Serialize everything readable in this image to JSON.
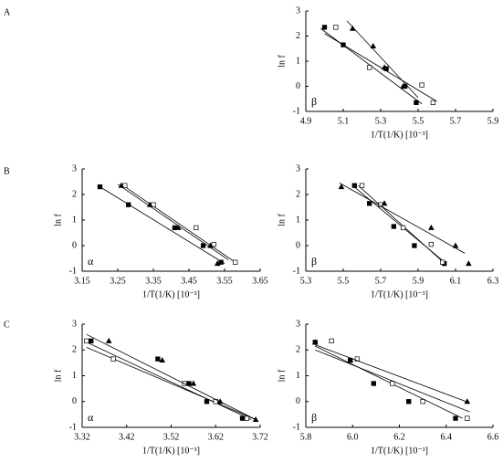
{
  "panel_labels": [
    "A",
    "B",
    "C"
  ],
  "chart_data": [
    {
      "type": "scatter",
      "annotation": "β",
      "xlabel": "1/T(1/K) [10⁻³]",
      "ylabel": "ln f",
      "xlim": [
        4.9,
        5.9
      ],
      "xticks": [
        4.9,
        5.1,
        5.3,
        5.5,
        5.7,
        5.9
      ],
      "ylim": [
        -1,
        3
      ],
      "yticks": [
        -1,
        0,
        1,
        2,
        3
      ],
      "series": [
        {
          "marker": "square-filled",
          "color": "#000000",
          "x": [
            5.0,
            5.1,
            5.33,
            5.43,
            5.49
          ],
          "values": [
            2.35,
            1.65,
            0.7,
            0.0,
            -0.65
          ],
          "fit": {
            "x": [
              4.98,
              5.52
            ],
            "values": [
              2.3,
              -0.7
            ]
          }
        },
        {
          "marker": "square-open",
          "color": "#000000",
          "x": [
            5.06,
            5.24,
            5.52,
            5.58
          ],
          "values": [
            2.35,
            0.75,
            0.05,
            -0.65
          ],
          "fit": {
            "x": [
              5.0,
              5.6
            ],
            "values": [
              2.1,
              -0.6
            ]
          }
        },
        {
          "marker": "triangle",
          "color": "#000000",
          "x": [
            5.15,
            5.26,
            5.32,
            5.42
          ],
          "values": [
            2.3,
            1.6,
            0.75,
            0.0
          ],
          "fit": {
            "x": [
              5.12,
              5.5
            ],
            "values": [
              2.6,
              -0.45
            ]
          }
        }
      ]
    },
    {
      "type": "scatter",
      "annotation": "α",
      "xlabel": "1/T(1/K) [10⁻³]",
      "ylabel": "ln f",
      "xlim": [
        3.15,
        3.65
      ],
      "xticks": [
        3.15,
        3.25,
        3.35,
        3.45,
        3.55,
        3.65
      ],
      "ylim": [
        -1,
        3
      ],
      "yticks": [
        -1,
        0,
        1,
        2,
        3
      ],
      "series": [
        {
          "marker": "square-filled",
          "color": "#000000",
          "x": [
            3.2,
            3.28,
            3.41,
            3.49,
            3.54
          ],
          "values": [
            2.3,
            1.6,
            0.7,
            0.0,
            -0.65
          ],
          "fit": {
            "x": [
              3.2,
              3.55
            ],
            "values": [
              2.3,
              -0.7
            ]
          }
        },
        {
          "marker": "square-open",
          "color": "#000000",
          "x": [
            3.27,
            3.35,
            3.47,
            3.52,
            3.58
          ],
          "values": [
            2.35,
            1.6,
            0.7,
            0.05,
            -0.65
          ],
          "fit": {
            "x": [
              3.26,
              3.58
            ],
            "values": [
              2.4,
              -0.65
            ]
          }
        },
        {
          "marker": "triangle",
          "color": "#000000",
          "x": [
            3.26,
            3.34,
            3.42,
            3.51,
            3.53
          ],
          "values": [
            2.35,
            1.6,
            0.7,
            0.0,
            -0.7
          ],
          "fit": {
            "x": [
              3.25,
              3.56
            ],
            "values": [
              2.4,
              -0.55
            ]
          }
        }
      ]
    },
    {
      "type": "scatter",
      "annotation": "β",
      "xlabel": "1/T(1/K) [10⁻³]",
      "ylabel": "ln f",
      "xlim": [
        5.3,
        6.3
      ],
      "xticks": [
        5.3,
        5.5,
        5.7,
        5.9,
        6.1,
        6.3
      ],
      "ylim": [
        -1,
        3
      ],
      "yticks": [
        -1,
        0,
        1,
        2,
        3
      ],
      "series": [
        {
          "marker": "square-filled",
          "color": "#000000",
          "x": [
            5.56,
            5.64,
            5.77,
            5.88,
            6.04
          ],
          "values": [
            2.35,
            1.65,
            0.75,
            0.0,
            -0.7
          ],
          "fit": {
            "x": [
              5.55,
              6.05
            ],
            "values": [
              2.35,
              -0.7
            ]
          }
        },
        {
          "marker": "square-open",
          "color": "#000000",
          "x": [
            5.6,
            5.7,
            5.82,
            5.97,
            6.03
          ],
          "values": [
            2.35,
            1.6,
            0.7,
            0.05,
            -0.65
          ],
          "fit": {
            "x": [
              5.58,
              6.05
            ],
            "values": [
              2.35,
              -0.75
            ]
          }
        },
        {
          "marker": "triangle",
          "color": "#000000",
          "x": [
            5.49,
            5.72,
            5.97,
            6.1,
            6.17
          ],
          "values": [
            2.3,
            1.65,
            0.7,
            0.0,
            -0.7
          ],
          "fit": {
            "x": [
              5.48,
              6.15
            ],
            "values": [
              2.45,
              -0.3
            ]
          }
        }
      ]
    },
    {
      "type": "scatter",
      "annotation": "α",
      "xlabel": "1/T(1/K) [10⁻³]",
      "ylabel": "ln f",
      "xlim": [
        3.32,
        3.72
      ],
      "xticks": [
        3.32,
        3.42,
        3.52,
        3.62,
        3.72
      ],
      "ylim": [
        -1,
        3
      ],
      "yticks": [
        -1,
        0,
        1,
        2,
        3
      ],
      "series": [
        {
          "marker": "square-filled",
          "color": "#000000",
          "x": [
            3.34,
            3.49,
            3.56,
            3.6,
            3.68
          ],
          "values": [
            2.35,
            1.65,
            0.7,
            0.0,
            -0.65
          ],
          "fit": {
            "x": [
              3.33,
              3.7
            ],
            "values": [
              2.3,
              -0.7
            ]
          }
        },
        {
          "marker": "square-open",
          "color": "#000000",
          "x": [
            3.33,
            3.39,
            3.55,
            3.62,
            3.69
          ],
          "values": [
            2.35,
            1.65,
            0.7,
            0.0,
            -0.65
          ],
          "fit": {
            "x": [
              3.33,
              3.71
            ],
            "values": [
              2.1,
              -0.7
            ]
          }
        },
        {
          "marker": "triangle",
          "color": "#000000",
          "x": [
            3.38,
            3.5,
            3.57,
            3.63,
            3.71
          ],
          "values": [
            2.35,
            1.6,
            0.7,
            0.0,
            -0.7
          ],
          "fit": {
            "x": [
              3.33,
              3.71
            ],
            "values": [
              2.6,
              -0.7
            ]
          }
        }
      ]
    },
    {
      "type": "scatter",
      "annotation": "β",
      "xlabel": "1/T(1/K) [10⁻³]",
      "ylabel": "ln f",
      "xlim": [
        5.8,
        6.6
      ],
      "xticks": [
        5.8,
        {
          "value": 6,
          "label": "6.0"
        },
        6.2,
        6.4,
        6.6
      ],
      "ylim": [
        -1,
        3
      ],
      "yticks": [
        -1,
        0,
        1,
        2,
        3
      ],
      "series": [
        {
          "marker": "square-filled",
          "color": "#000000",
          "x": [
            5.84,
            5.99,
            6.09,
            6.24,
            6.44
          ],
          "values": [
            2.3,
            1.6,
            0.7,
            0.0,
            -0.65
          ],
          "fit": {
            "x": [
              5.84,
              6.47
            ],
            "values": [
              2.15,
              -0.65
            ]
          }
        },
        {
          "marker": "square-open",
          "color": "#000000",
          "x": [
            5.91,
            6.02,
            6.17,
            6.3,
            6.49
          ],
          "values": [
            2.35,
            1.65,
            0.7,
            0.0,
            -0.65
          ],
          "fit": {
            "x": [
              5.84,
              6.5
            ],
            "values": [
              2.0,
              -0.4
            ]
          }
        },
        {
          "marker": "triangle",
          "color": "#000000",
          "x": [
            5.84,
            5.99,
            6.49
          ],
          "values": [
            2.3,
            1.6,
            0.0
          ],
          "fit": {
            "x": [
              5.84,
              6.5
            ],
            "values": [
              2.2,
              -0.05
            ]
          }
        }
      ]
    }
  ]
}
